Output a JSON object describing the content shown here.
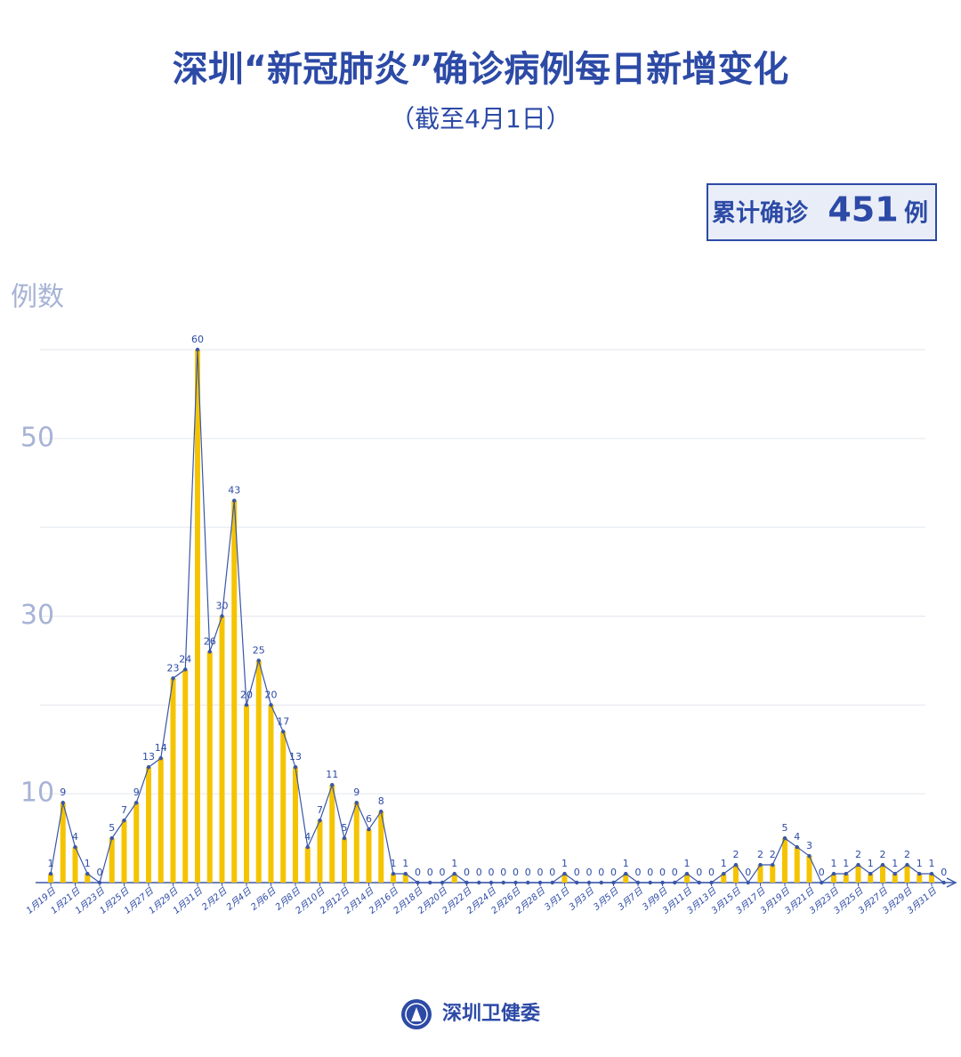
{
  "header": {
    "title": "深圳“新冠肺炎”确诊病例每日新增变化",
    "subtitle": "（截至4月1日）"
  },
  "total_box": {
    "prefix": "累计确诊",
    "value": 451,
    "suffix": "例"
  },
  "footer": {
    "source": "深圳卫健委"
  },
  "chart_data": {
    "type": "bar",
    "y_label": "例数",
    "categories": [
      "1月19日",
      null,
      "1月21日",
      null,
      "1月23日",
      null,
      "1月25日",
      null,
      "1月27日",
      null,
      "1月29日",
      null,
      "1月31日",
      null,
      "2月2日",
      null,
      "2月4日",
      null,
      "2月6日",
      null,
      "2月8日",
      null,
      "2月10日",
      null,
      "2月12日",
      null,
      "2月14日",
      null,
      "2月16日",
      null,
      "2月18日",
      null,
      "2月20日",
      null,
      "2月22日",
      null,
      "2月24日",
      null,
      "2月26日",
      null,
      "2月28日",
      null,
      "3月1日",
      null,
      "3月3日",
      null,
      "3月5日",
      null,
      "3月7日",
      null,
      "3月9日",
      null,
      "3月11日",
      null,
      "3月13日",
      null,
      "3月15日",
      null,
      "3月17日",
      null,
      "3月19日",
      null,
      "3月21日",
      null,
      "3月23日",
      null,
      "3月25日",
      null,
      "3月27日",
      null,
      "3月29日",
      null,
      "3月31日",
      null
    ],
    "values": [
      1,
      9,
      4,
      1,
      0,
      5,
      7,
      9,
      13,
      14,
      23,
      24,
      60,
      26,
      30,
      43,
      20,
      25,
      20,
      17,
      13,
      4,
      7,
      11,
      5,
      9,
      6,
      8,
      1,
      1,
      0,
      0,
      0,
      1,
      0,
      0,
      0,
      0,
      0,
      0,
      0,
      0,
      1,
      0,
      0,
      0,
      0,
      1,
      0,
      0,
      0,
      0,
      1,
      0,
      0,
      1,
      2,
      0,
      2,
      2,
      5,
      4,
      3,
      0,
      1,
      1,
      2,
      1,
      2,
      1,
      2,
      1,
      1,
      0
    ],
    "bar_color": "#f5c400",
    "line_color": "#3a56a8",
    "ylim": [
      0,
      60
    ],
    "yticks": [
      10,
      30,
      50
    ],
    "minor_yticks": [
      20,
      40,
      60
    ],
    "grid": true
  }
}
